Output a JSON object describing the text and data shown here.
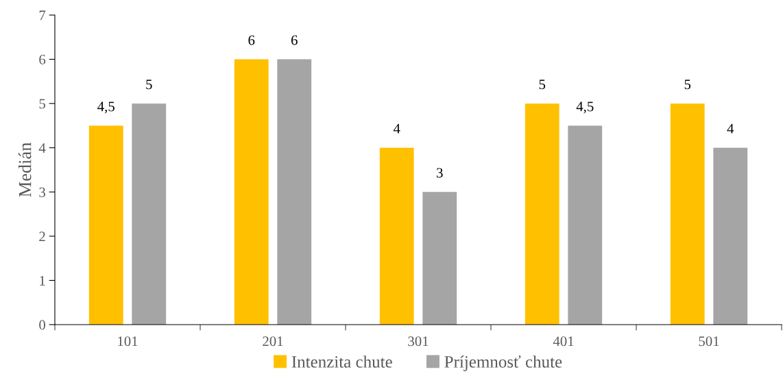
{
  "chart_data": {
    "type": "bar",
    "ylabel": "Medián",
    "categories": [
      "101",
      "201",
      "301",
      "401",
      "501"
    ],
    "series": [
      {
        "name": "Intenzita chute",
        "color": "#ffc000",
        "values": [
          4.5,
          6,
          4,
          5,
          5
        ],
        "value_labels": [
          "4,5",
          "6",
          "4",
          "5",
          "5"
        ]
      },
      {
        "name": "Príjemnosť chute",
        "color": "#a5a5a5",
        "values": [
          5,
          6,
          3,
          4.5,
          4
        ],
        "value_labels": [
          "5",
          "6",
          "3",
          "4,5",
          "4"
        ]
      }
    ],
    "ylim": [
      0,
      7
    ],
    "yticks": [
      0,
      1,
      2,
      3,
      4,
      5,
      6,
      7
    ],
    "grid": false,
    "legend": "bottom"
  }
}
